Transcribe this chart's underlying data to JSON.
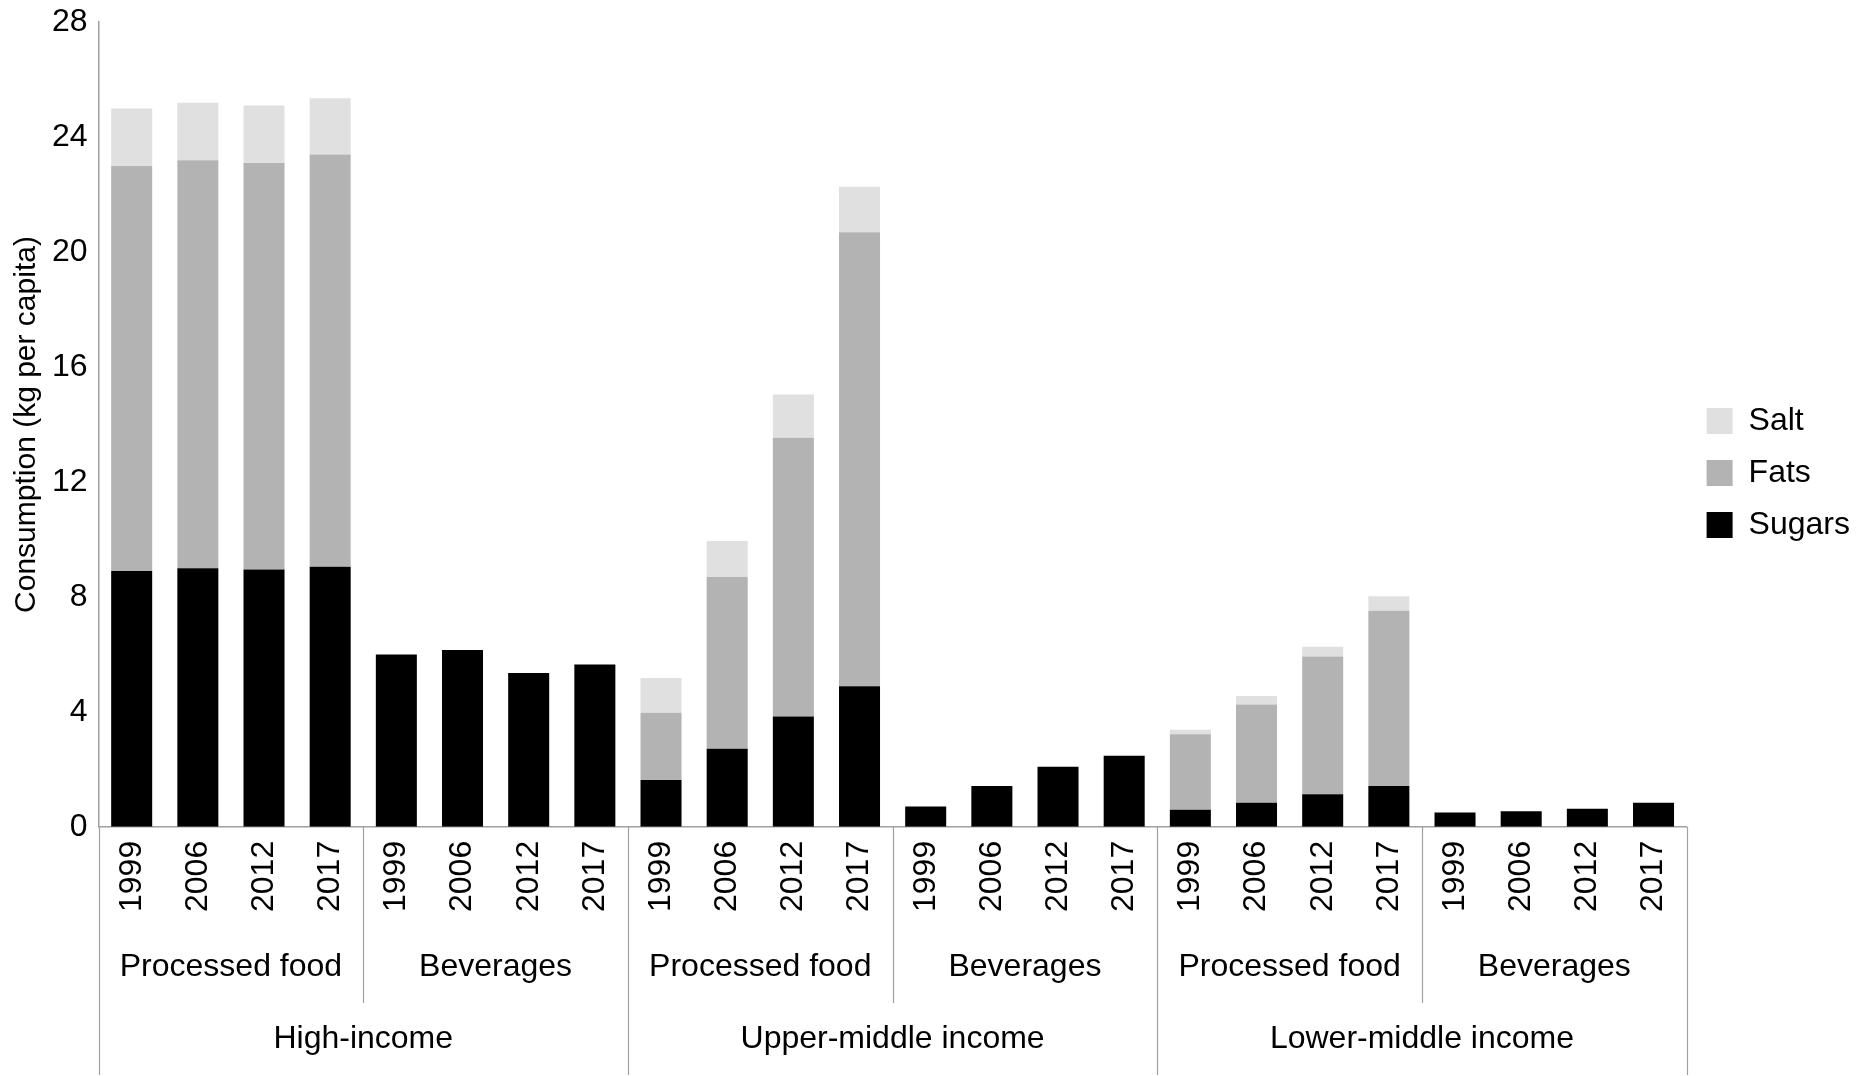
{
  "chart_data": {
    "type": "bar",
    "stacked": true,
    "ylabel": "Consumption (kg per capita)",
    "categories": [
      "1999",
      "2006",
      "2012",
      "2017",
      "1999",
      "2006",
      "2012",
      "2017",
      "1999",
      "2006",
      "2012",
      "2017",
      "1999",
      "2006",
      "2012",
      "2017",
      "1999",
      "2006",
      "2012",
      "2017",
      "1999",
      "2006",
      "2012",
      "2017"
    ],
    "series": [
      {
        "name": "Sugars",
        "color": "#000000",
        "values": [
          8.9,
          9.0,
          8.95,
          9.05,
          6.0,
          6.15,
          5.35,
          5.65,
          1.63,
          2.72,
          3.84,
          4.89,
          0.71,
          1.42,
          2.09,
          2.47,
          0.59,
          0.84,
          1.13,
          1.42,
          0.5,
          0.54,
          0.63,
          0.84
        ]
      },
      {
        "name": "Fats",
        "color": "#b3b3b3",
        "values": [
          14.1,
          14.2,
          14.15,
          14.35,
          null,
          null,
          null,
          null,
          2.34,
          5.97,
          9.7,
          15.8,
          null,
          null,
          null,
          null,
          2.63,
          3.42,
          4.8,
          6.1,
          null,
          null,
          null,
          null
        ]
      },
      {
        "name": "Salt",
        "color": "#e0e0e0",
        "values": [
          2.0,
          2.0,
          2.0,
          1.95,
          null,
          null,
          null,
          null,
          1.21,
          1.26,
          1.5,
          1.58,
          null,
          null,
          null,
          null,
          0.16,
          0.29,
          0.34,
          0.5,
          null,
          null,
          null,
          null
        ]
      }
    ],
    "ylim": [
      0,
      28
    ],
    "yticks": [
      0,
      4,
      8,
      12,
      16,
      20,
      24,
      28
    ],
    "grid": false,
    "legend": "right",
    "annotations": [
      "Processed food",
      "Beverages",
      "Processed food",
      "Beverages",
      "Processed food",
      "Beverages",
      "High-income",
      "Upper-middle income",
      "Lower-middle income"
    ]
  }
}
